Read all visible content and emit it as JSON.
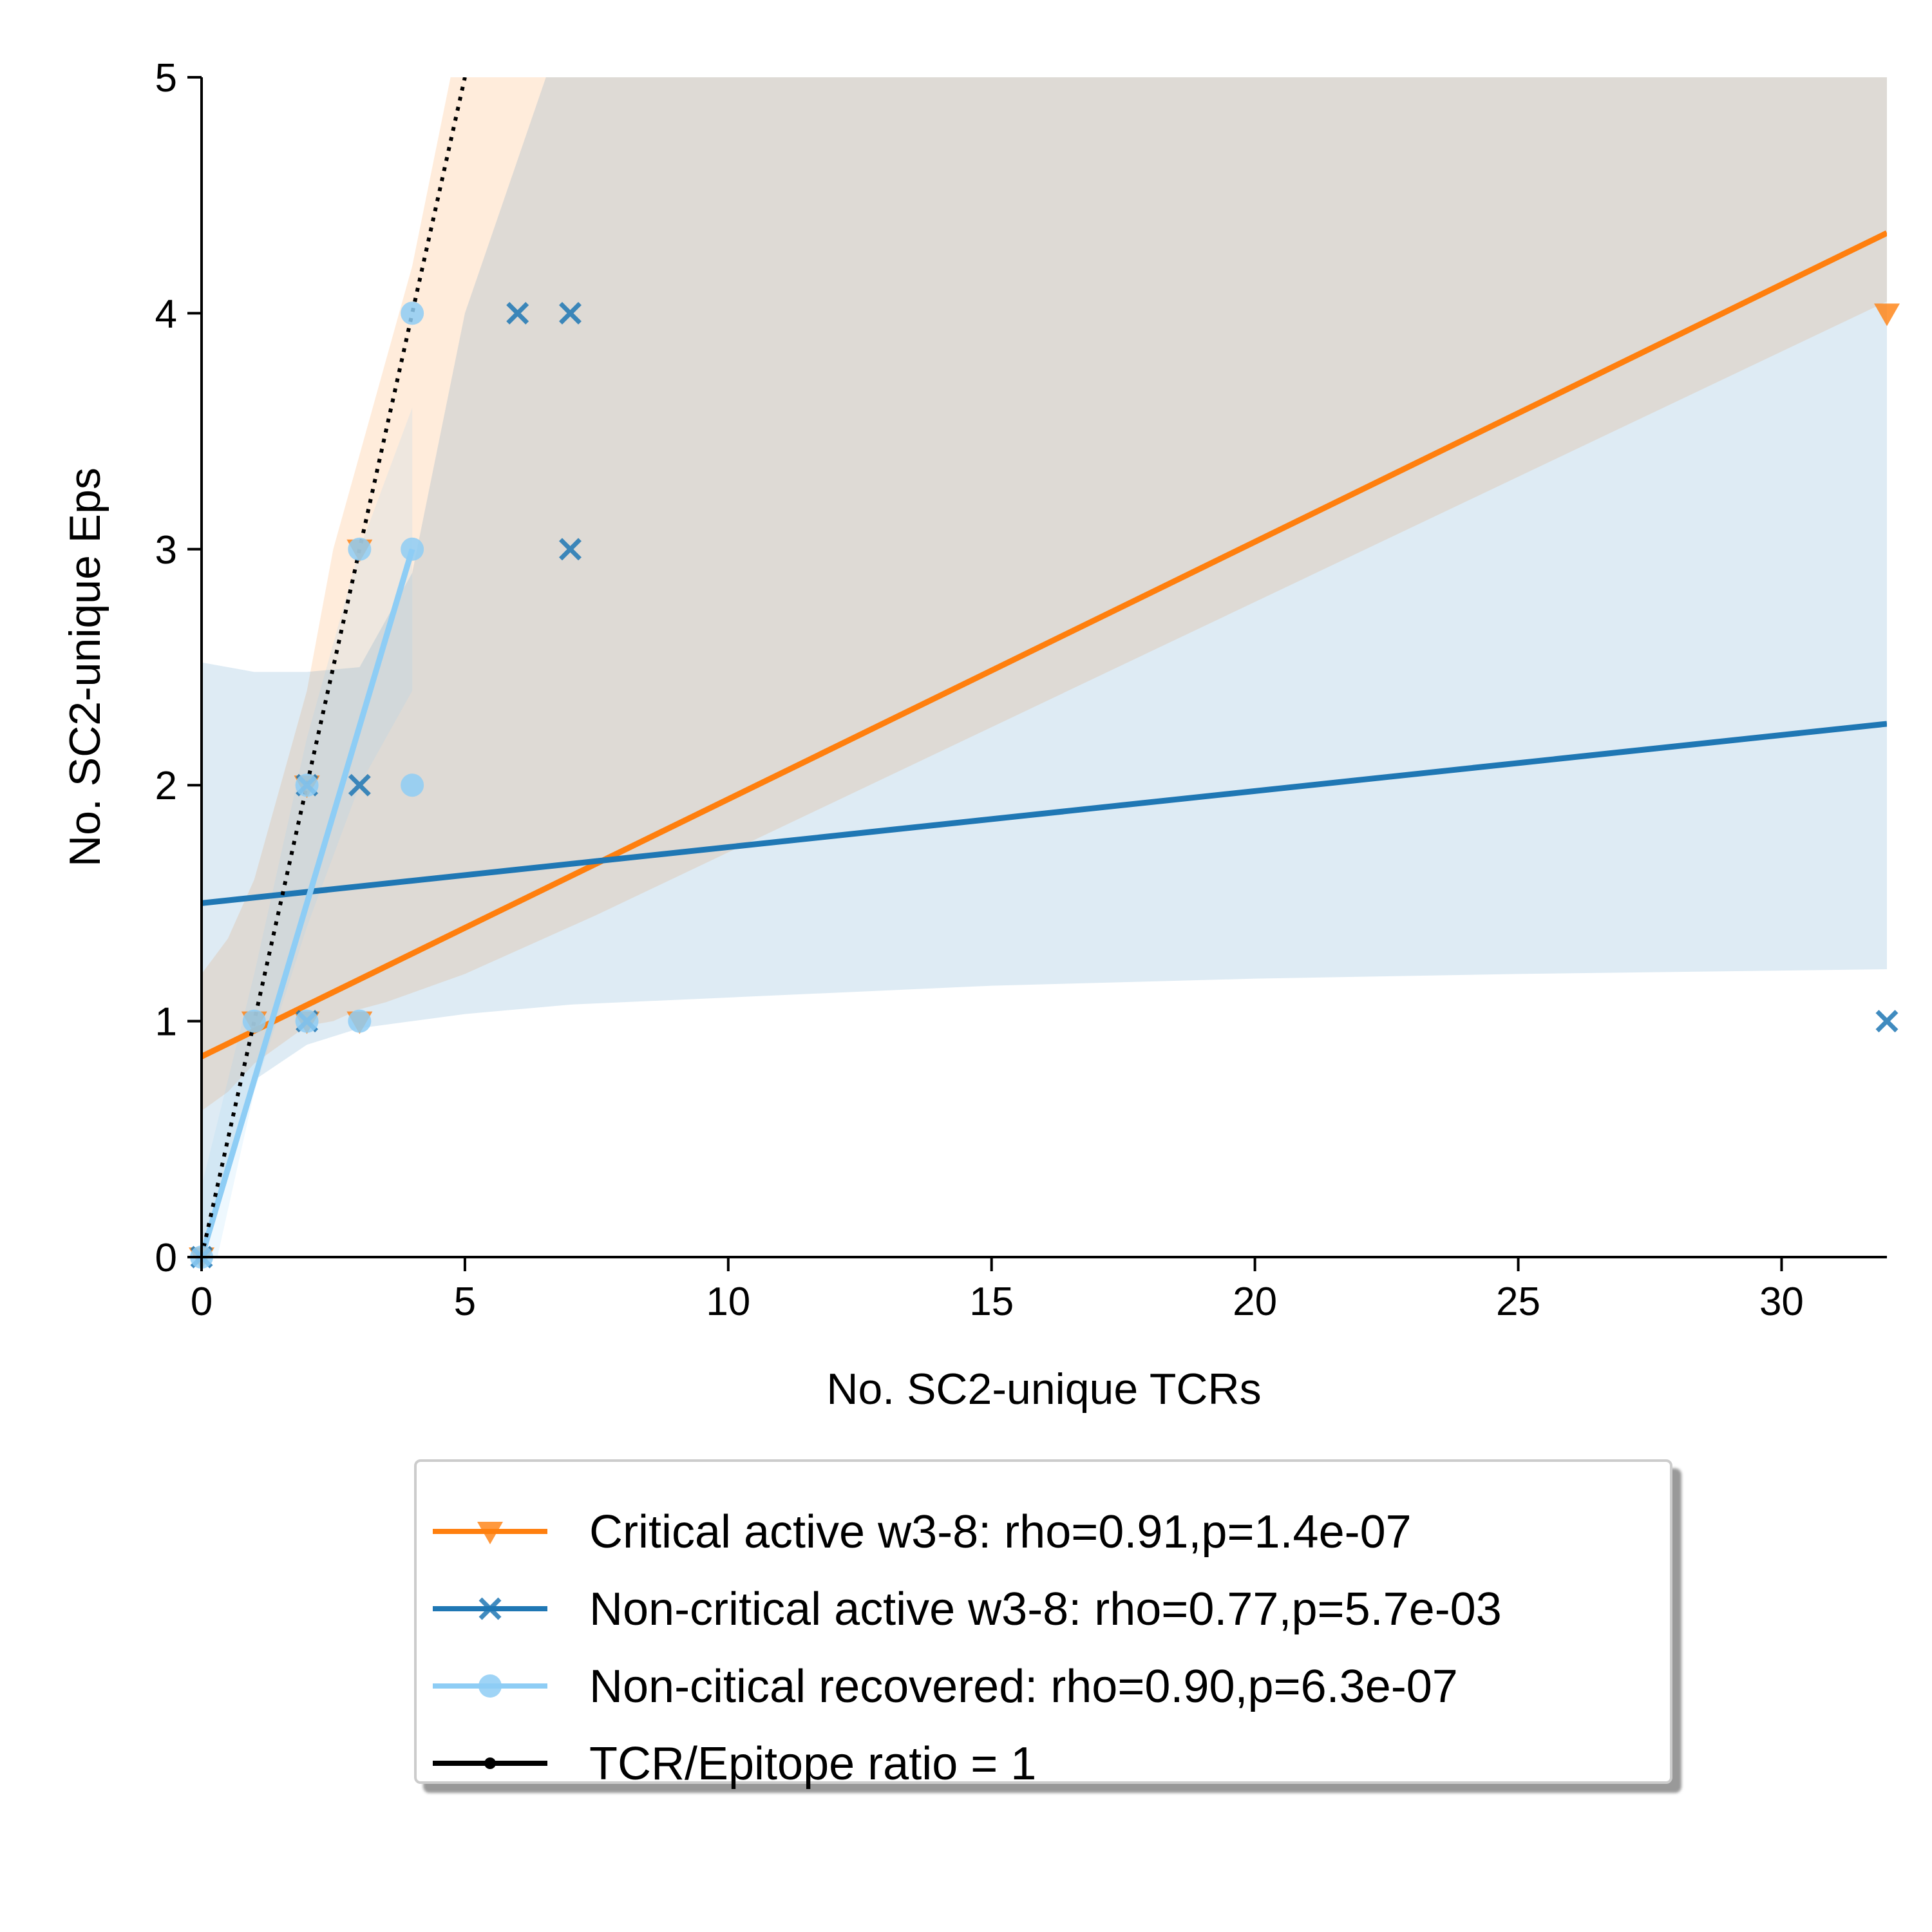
{
  "chart_data": {
    "type": "scatter",
    "xlabel": "No. SC2-unique TCRs",
    "ylabel": "No. SC2-unique Eps",
    "xlim": [
      0,
      32
    ],
    "ylim": [
      0,
      5
    ],
    "xticks": [
      0,
      5,
      10,
      15,
      20,
      25,
      30
    ],
    "yticks": [
      0,
      1,
      2,
      3,
      4,
      5
    ],
    "grid": false,
    "legend_position": "below plot",
    "series": [
      {
        "name": "Critical active w3-8: rho=0.91,p=1.4e-07",
        "color": "#ff7f0e",
        "marker": "triangle-down",
        "points": [
          [
            0,
            0
          ],
          [
            1,
            1
          ],
          [
            2,
            1
          ],
          [
            2,
            2
          ],
          [
            3,
            1
          ],
          [
            3,
            3
          ],
          [
            32,
            4
          ]
        ],
        "fit": {
          "x": [
            0,
            32
          ],
          "y": [
            0.85,
            4.34
          ]
        },
        "ci": {
          "x": [
            0,
            0.5,
            1,
            1.5,
            2,
            2.5,
            3,
            3.5,
            4,
            5,
            7.5,
            32
          ],
          "lower": [
            0.62,
            0.7,
            0.82,
            0.9,
            0.98,
            1.0,
            1.05,
            1.08,
            1.12,
            1.2,
            1.45,
            4.05
          ],
          "upper": [
            1.2,
            1.35,
            1.6,
            2.0,
            2.4,
            3.0,
            3.4,
            3.8,
            4.2,
            5.3,
            7.5,
            5.3
          ]
        }
      },
      {
        "name": "Non-critical active w3-8: rho=0.77,p=5.7e-03",
        "color": "#1f77b4",
        "marker": "x",
        "points": [
          [
            0,
            0
          ],
          [
            2,
            1
          ],
          [
            2,
            2
          ],
          [
            3,
            2
          ],
          [
            6,
            4
          ],
          [
            7,
            4
          ],
          [
            7,
            3
          ],
          [
            32,
            1
          ]
        ],
        "fit": {
          "x": [
            0,
            32
          ],
          "y": [
            1.5,
            2.26
          ]
        },
        "ci": {
          "x": [
            0,
            1,
            2,
            3,
            4,
            5,
            7,
            10,
            15,
            20,
            25,
            32
          ],
          "lower": [
            0.0,
            0.75,
            0.9,
            0.97,
            1.0,
            1.03,
            1.07,
            1.1,
            1.15,
            1.18,
            1.2,
            1.22
          ],
          "upper": [
            2.52,
            2.48,
            2.48,
            2.5,
            2.9,
            4.0,
            5.3,
            5.3,
            5.3,
            5.3,
            5.3,
            5.3
          ]
        }
      },
      {
        "name": "Non-citical recovered: rho=0.90,p=6.3e-07",
        "color": "#8ecdf5",
        "marker": "circle",
        "points": [
          [
            0,
            0
          ],
          [
            1,
            1
          ],
          [
            2,
            1
          ],
          [
            2,
            2
          ],
          [
            3,
            1
          ],
          [
            3,
            3
          ],
          [
            4,
            3
          ],
          [
            4,
            4
          ],
          [
            4,
            2
          ]
        ],
        "fit": {
          "x": [
            0,
            4
          ],
          "y": [
            0.0,
            3.0
          ]
        },
        "ci": {
          "x": [
            0,
            1,
            2,
            3,
            4
          ],
          "lower": [
            -0.3,
            0.7,
            1.4,
            2.0,
            2.4
          ],
          "upper": [
            0.3,
            1.2,
            2.2,
            3.0,
            3.6
          ]
        }
      },
      {
        "name": "TCR/Epitope ratio = 1",
        "color": "#000000",
        "style": "dotted",
        "marker": "point",
        "line": {
          "x": [
            0,
            5
          ],
          "y": [
            0,
            5
          ]
        }
      }
    ]
  }
}
